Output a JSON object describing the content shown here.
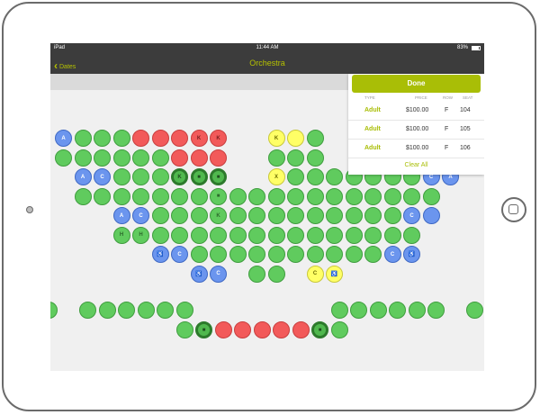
{
  "status_bar": {
    "device": "iPad",
    "time": "11:44 AM",
    "battery": "83%",
    "battery_level": 0.83
  },
  "nav": {
    "back_label": "Dates",
    "title": "Orchestra"
  },
  "colors": {
    "accent": "#a9be06",
    "available": "#60cb5e",
    "unavailable": "#f25a5a",
    "accessible": "#6b95ee",
    "companion": "#ffff66"
  },
  "legend_codes": {
    "A": "A",
    "C": "C",
    "H": "H",
    "K": "K"
  },
  "cart": {
    "done_label": "Done",
    "headers": [
      "TYPE",
      "PRICE",
      "ROW",
      "SEAT"
    ],
    "items": [
      {
        "type": "Adult",
        "price": "$100.00",
        "row": "F",
        "seat": "104"
      },
      {
        "type": "Adult",
        "price": "$100.00",
        "row": "F",
        "seat": "105"
      },
      {
        "type": "Adult",
        "price": "$100.00",
        "row": "F",
        "seat": "106"
      }
    ],
    "clear_label": "Clear All"
  },
  "seat_rows": [
    [
      "blue:A",
      "green",
      "green",
      "green",
      "red",
      "red",
      "red",
      "red:K",
      "red:K",
      "_",
      "_",
      "yellow:K",
      "yellow",
      "green",
      "_",
      "_",
      "_",
      "_",
      "_",
      "_",
      "_"
    ],
    [
      "green",
      "green",
      "green",
      "green",
      "green",
      "green",
      "red",
      "red",
      "red",
      "_",
      "_",
      "green",
      "green",
      "green",
      "_",
      "_",
      "_",
      "_",
      "_",
      "_",
      "_"
    ],
    [
      "_",
      "blue:A",
      "blue:C",
      "green",
      "green",
      "green",
      "sel:K",
      "sel:■",
      "sel:■",
      "_",
      "_",
      "yellow:X",
      "green",
      "green",
      "green",
      "green",
      "green",
      "green",
      "green",
      "blue:C",
      "blue:A"
    ],
    [
      "_",
      "green",
      "green",
      "green",
      "green",
      "green",
      "green",
      "green",
      "green:■",
      "green",
      "green",
      "green",
      "green",
      "green",
      "green",
      "green",
      "green",
      "green",
      "green",
      "green",
      "_"
    ],
    [
      "_",
      "_",
      "_",
      "blue:A",
      "blue:C",
      "green",
      "green",
      "green",
      "green:K",
      "green",
      "green",
      "green",
      "green",
      "green",
      "green",
      "green",
      "green",
      "green",
      "blue:C",
      "blue",
      "_"
    ],
    [
      "_",
      "_",
      "_",
      "green:H",
      "green:H",
      "green",
      "green",
      "green",
      "green",
      "green",
      "green",
      "green",
      "green",
      "green",
      "green",
      "green",
      "green",
      "green",
      "green",
      "_",
      "_"
    ],
    [
      "_",
      "_",
      "_",
      "_",
      "_",
      "blue:♿",
      "blue:C",
      "green",
      "green",
      "green",
      "green",
      "green",
      "green",
      "green",
      "green",
      "green",
      "green",
      "blue:C",
      "blue:♿",
      "_",
      "_"
    ],
    [
      "_",
      "_",
      "_",
      "_",
      "_",
      "_",
      "_",
      "blue:♿",
      "blue:C",
      "_",
      "green",
      "green",
      "_",
      "yellow:C",
      "yellow:♿",
      "_",
      "_",
      "_",
      "_",
      "_",
      "_"
    ]
  ],
  "lower_rows": [
    [
      "green",
      "_",
      "green",
      "green",
      "green",
      "green",
      "green",
      "green",
      "_",
      "_",
      "_",
      "_",
      "_",
      "_",
      "_",
      "green",
      "green",
      "green",
      "green",
      "green",
      "green",
      "_",
      "green"
    ],
    [
      "_",
      "_",
      "_",
      "_",
      "_",
      "_",
      "_",
      "green",
      "sel:■",
      "red",
      "red",
      "red",
      "red",
      "red",
      "sel:■",
      "green",
      "_",
      "_",
      "_",
      "_",
      "_",
      "_",
      "_"
    ]
  ]
}
